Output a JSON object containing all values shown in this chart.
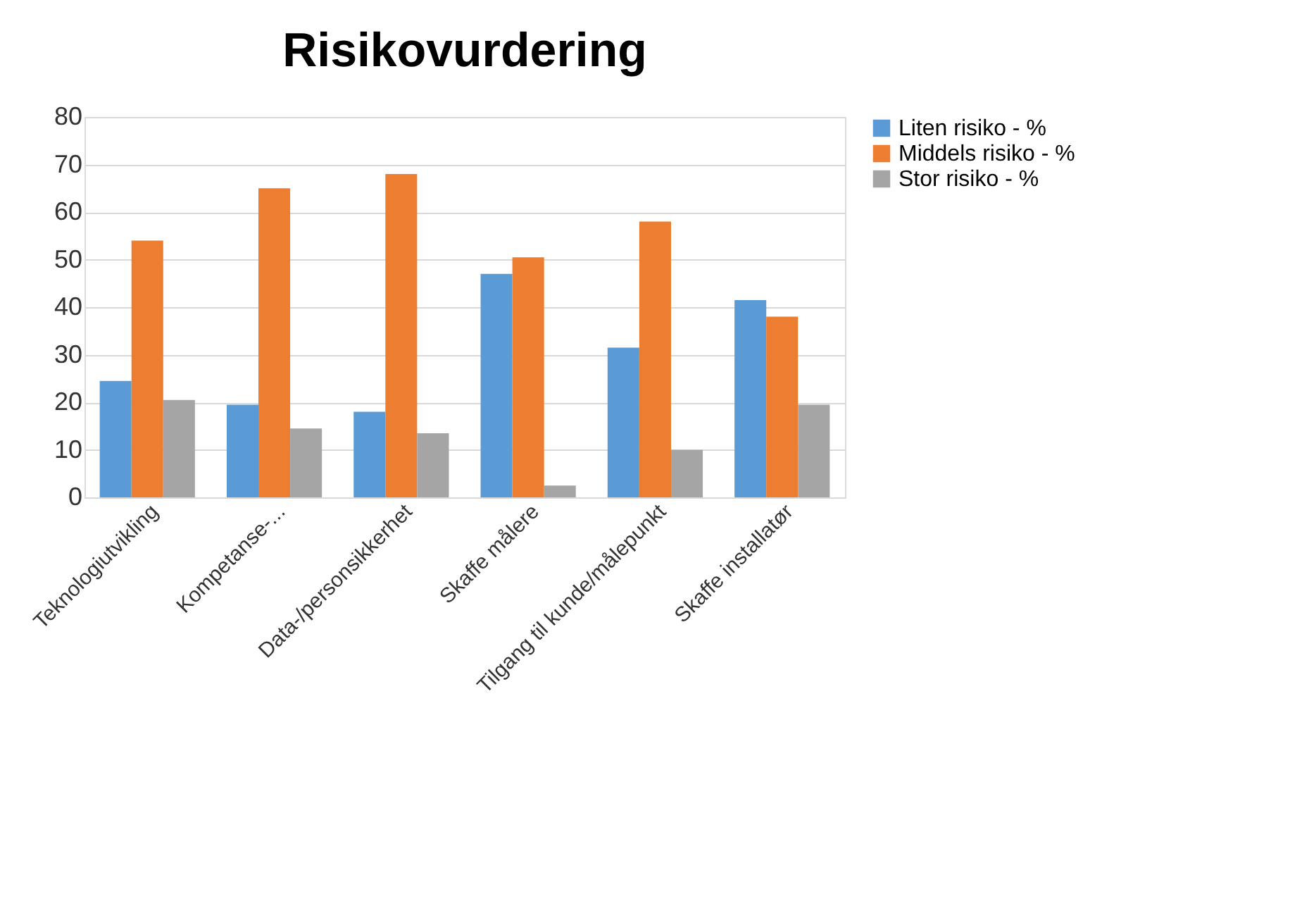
{
  "chart_data": {
    "type": "bar",
    "title": "Risikovurdering",
    "categories": [
      "Teknologiutvikling",
      "Kompetanse-...",
      "Data-/personsikkerhet",
      "Skaffe målere",
      "Tilgang til kunde/målepunkt",
      "Skaffe installatør"
    ],
    "series": [
      {
        "name": "Liten risiko - %",
        "color": "#5b9bd5",
        "values": [
          24.5,
          19.5,
          18,
          47,
          31.5,
          41.5
        ]
      },
      {
        "name": "Middels risiko - %",
        "color": "#ed7d31",
        "values": [
          54,
          65,
          68,
          50.5,
          58,
          38
        ]
      },
      {
        "name": "Stor risiko - %",
        "color": "#a5a5a5",
        "values": [
          20.5,
          14.5,
          13.5,
          2.5,
          10,
          19.5
        ]
      }
    ],
    "ylim": [
      0,
      80
    ],
    "yticks": [
      0,
      10,
      20,
      30,
      40,
      50,
      60,
      70,
      80
    ],
    "grid": "y",
    "legend": "right"
  }
}
